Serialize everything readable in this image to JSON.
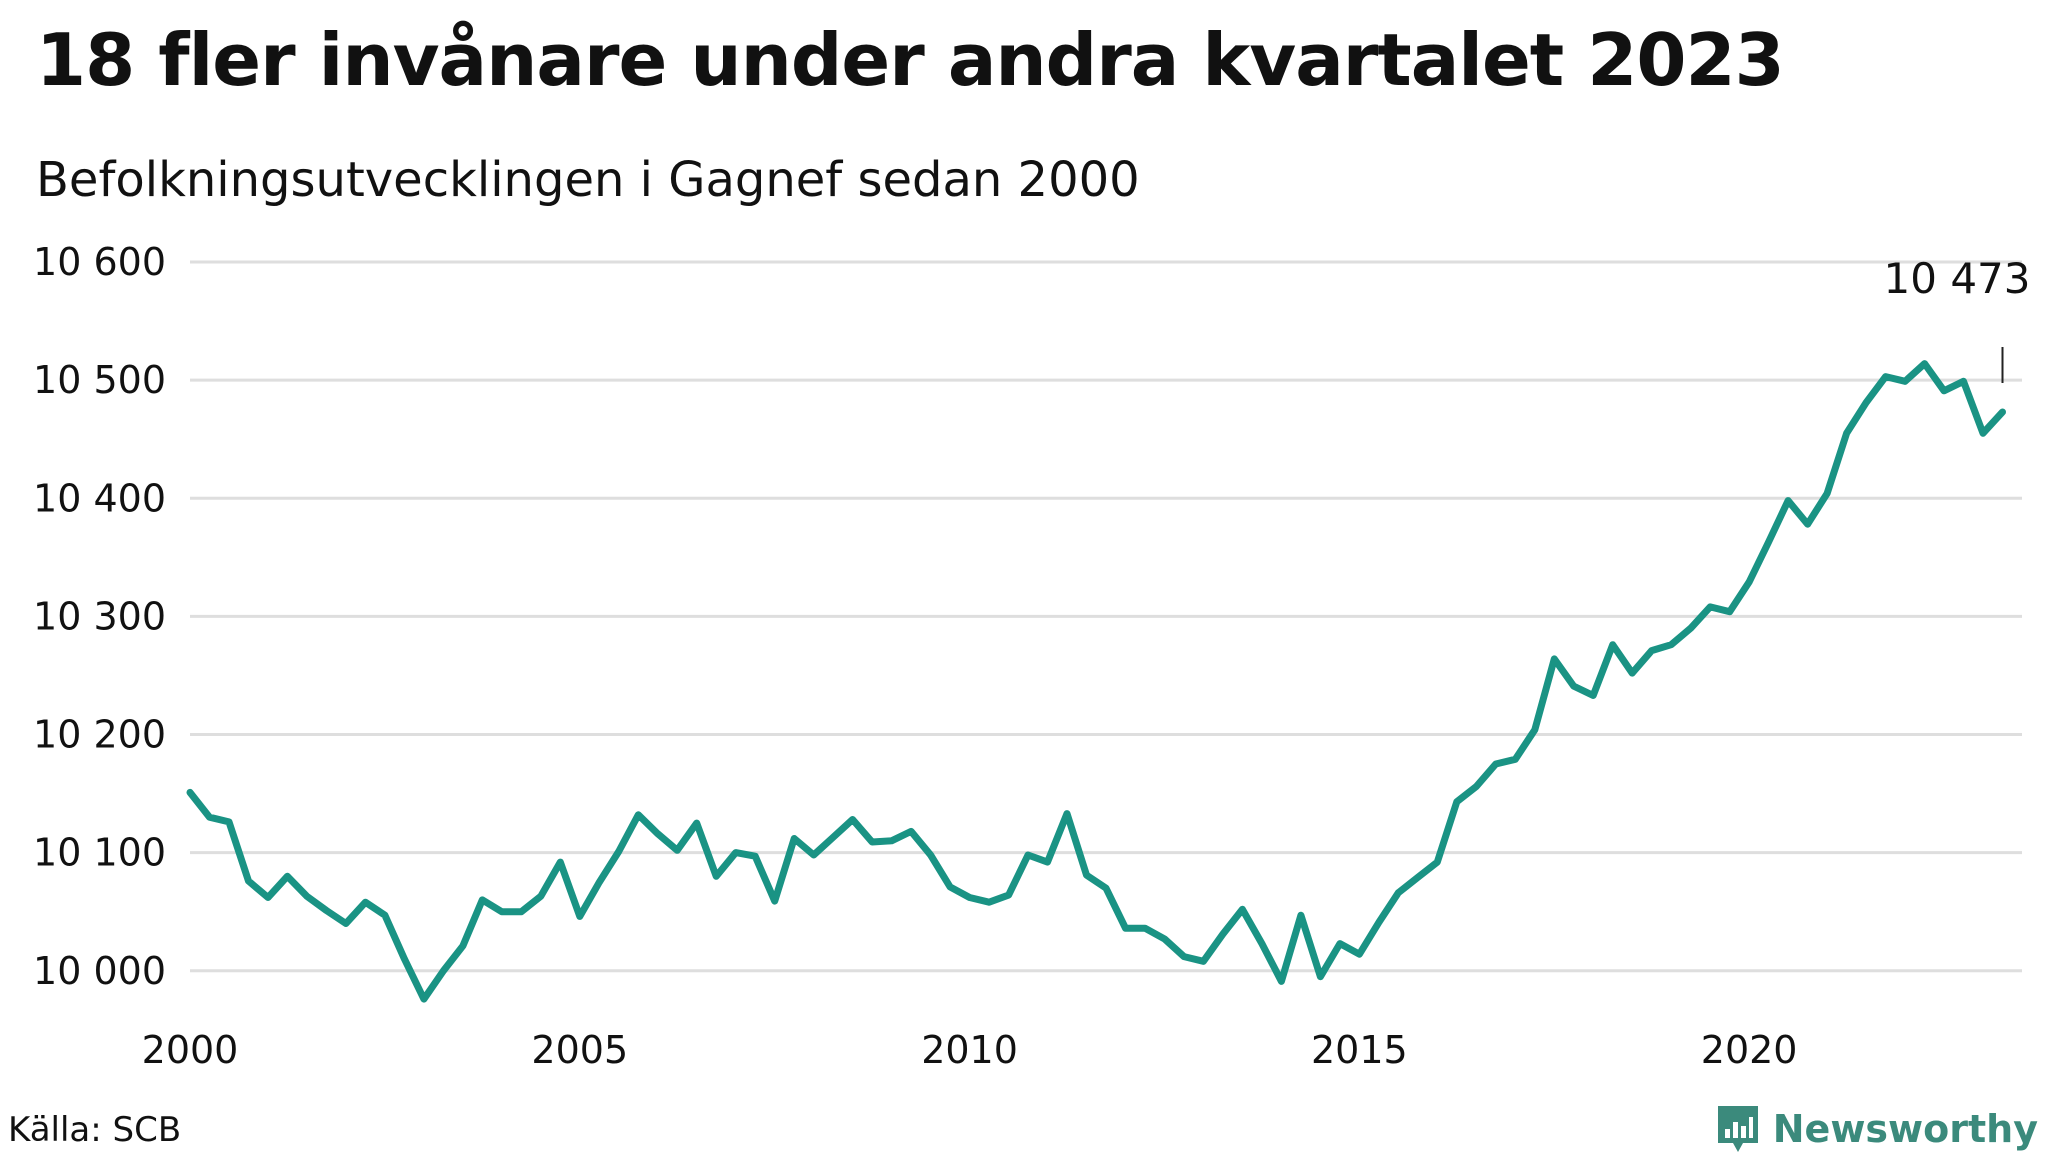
{
  "title": "18 fler invånare under andra kvartalet 2023",
  "subtitle": "Befolkningsutvecklingen i Gagnef sedan 2000",
  "source": "Källa: SCB",
  "brand": {
    "name": "Newsworthy",
    "icon": "bar-chart-logo-icon",
    "color": "#3b8a7c"
  },
  "colors": {
    "line": "#1a9384",
    "grid": "#dedede",
    "text": "#111111"
  },
  "chart_data": {
    "type": "line",
    "title": "18 fler invånare under andra kvartalet 2023",
    "subtitle": "Befolkningsutvecklingen i Gagnef sedan 2000",
    "xlabel": "",
    "ylabel": "",
    "xlim": [
      2000,
      2023.5
    ],
    "ylim": [
      9960,
      10600
    ],
    "grid": true,
    "y_ticks": [
      10000,
      10100,
      10200,
      10300,
      10400,
      10500,
      10600
    ],
    "y_tick_labels": [
      "10 000",
      "10 100",
      "10 200",
      "10 300",
      "10 400",
      "10 500",
      "10 600"
    ],
    "x_ticks": [
      2000,
      2005,
      2010,
      2015,
      2020
    ],
    "x_tick_labels": [
      "2000",
      "2005",
      "2010",
      "2015",
      "2020"
    ],
    "end_label": "10 473",
    "series": [
      {
        "color": "#1a9384",
        "x_start": 2000,
        "x_step": 0.25,
        "values": [
          10151,
          10130,
          10126,
          10076,
          10062,
          10080,
          10063,
          10051,
          10040,
          10058,
          10047,
          10010,
          9976,
          10000,
          10021,
          10060,
          10050,
          10050,
          10063,
          10092,
          10046,
          10075,
          10101,
          10132,
          10116,
          10102,
          10125,
          10080,
          10100,
          10097,
          10059,
          10112,
          10098,
          10113,
          10128,
          10109,
          10110,
          10118,
          10098,
          10071,
          10062,
          10058,
          10064,
          10098,
          10092,
          10133,
          10081,
          10070,
          10036,
          10036,
          10027,
          10012,
          10008,
          10031,
          10052,
          10023,
          9991,
          10047,
          9995,
          10023,
          10014,
          10041,
          10066,
          10079,
          10092,
          10143,
          10156,
          10175,
          10179,
          10204,
          10264,
          10241,
          10233,
          10276,
          10252,
          10271,
          10276,
          10290,
          10308,
          10304,
          10329,
          10363,
          10398,
          10378,
          10404,
          10455,
          10481,
          10503,
          10499,
          10514,
          10491,
          10499,
          10455,
          10473
        ]
      }
    ]
  }
}
